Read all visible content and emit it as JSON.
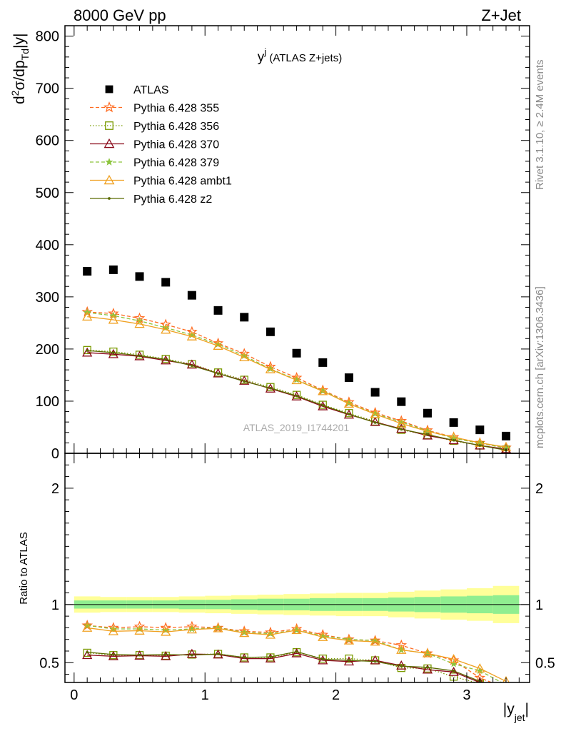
{
  "header": {
    "left": "8000 GeV pp",
    "right": "Z+Jet"
  },
  "side_labels": {
    "rivet": "Rivet 3.1.10, ≥ 2.4M events",
    "mcplots": "mcplots.cern.ch [arXiv:1306.3436]"
  },
  "chart_data": [
    {
      "type": "scatter",
      "panel": "main",
      "title": "y",
      "title_superscript": "j",
      "title_suffix": " (ATLAS Z+jets)",
      "ylabel": "d²σ/dp_Td|y|",
      "ylabel_parts": {
        "d": "d",
        "sup": "2",
        "mid": "σ/dp",
        "sub": "Td",
        "end": "|y|"
      },
      "watermark": "ATLAS_2019_I1744201",
      "xlim": [
        -0.07,
        3.48
      ],
      "ylim": [
        0,
        820
      ],
      "yticks": [
        0,
        100,
        200,
        300,
        400,
        500,
        600,
        700,
        800
      ],
      "x": [
        0.1,
        0.3,
        0.5,
        0.7,
        0.9,
        1.1,
        1.3,
        1.5,
        1.7,
        1.9,
        2.1,
        2.3,
        2.5,
        2.7,
        2.9,
        3.1,
        3.3
      ],
      "legend_position": "top-left",
      "series": [
        {
          "name": "ATLAS",
          "color": "#000000",
          "marker": "square",
          "line": "none",
          "values": [
            349,
            352,
            339,
            328,
            303,
            274,
            261,
            233,
            192,
            174,
            145,
            117,
            99,
            77,
            59,
            45,
            33
          ]
        },
        {
          "name": "Pythia 6.428 355",
          "color": "#ff6a1f",
          "marker": "star",
          "line": "dashed",
          "values": [
            271,
            268,
            259,
            247,
            233,
            211,
            191,
            166,
            145,
            121,
            98,
            78,
            62,
            44,
            31,
            20,
            11
          ]
        },
        {
          "name": "Pythia 6.428 356",
          "color": "#7a9a00",
          "marker": "open-square",
          "line": "dotted",
          "values": [
            198,
            195,
            189,
            181,
            171,
            155,
            141,
            127,
            112,
            93,
            77,
            61,
            45,
            35,
            24,
            15,
            7
          ]
        },
        {
          "name": "Pythia 6.428 370",
          "color": "#8b0a1a",
          "marker": "open-triangle",
          "line": "solid",
          "values": [
            193,
            190,
            186,
            178,
            170,
            153,
            139,
            124,
            109,
            90,
            74,
            60,
            47,
            34,
            25,
            15,
            8
          ]
        },
        {
          "name": "Pythia 6.428 379",
          "color": "#8cc43c",
          "marker": "star-small",
          "line": "dashed",
          "values": [
            270,
            264,
            254,
            241,
            227,
            209,
            187,
            162,
            141,
            120,
            96,
            76,
            60,
            43,
            29,
            19,
            10
          ]
        },
        {
          "name": "Pythia 6.428 ambt1",
          "color": "#f0a020",
          "marker": "open-triangle",
          "line": "solid",
          "values": [
            262,
            256,
            248,
            237,
            224,
            206,
            184,
            161,
            140,
            119,
            95,
            75,
            57,
            42,
            31,
            20,
            12
          ]
        },
        {
          "name": "Pythia 6.428 z2",
          "color": "#5a6a00",
          "marker": "dot",
          "line": "solid",
          "values": [
            197,
            193,
            187,
            180,
            168,
            153,
            138,
            125,
            110,
            92,
            75,
            59,
            46,
            36,
            25,
            15,
            6
          ]
        }
      ]
    },
    {
      "type": "line",
      "panel": "ratio",
      "ylabel": "Ratio to ATLAS",
      "xlabel": "|y",
      "xlabel_sub": "jet",
      "xlabel_end": "|",
      "xlim": [
        -0.07,
        3.48
      ],
      "ylim": [
        0.33,
        2.3
      ],
      "yticks": [
        0.5,
        1,
        2
      ],
      "ytick_labels": [
        "0.5",
        "1",
        "2"
      ],
      "xticks": [
        0,
        1,
        2,
        3
      ],
      "xtick_labels": [
        "0",
        "1",
        "2",
        "3"
      ],
      "band_edges": [
        0.0,
        0.2,
        0.4,
        0.6,
        0.8,
        1.0,
        1.2,
        1.4,
        1.6,
        1.8,
        2.0,
        2.2,
        2.4,
        2.6,
        2.8,
        3.0,
        3.2,
        3.4
      ],
      "band_inner": [
        0.035,
        0.035,
        0.035,
        0.035,
        0.04,
        0.04,
        0.045,
        0.05,
        0.05,
        0.055,
        0.055,
        0.055,
        0.06,
        0.065,
        0.07,
        0.075,
        0.08
      ],
      "band_outer": [
        0.07,
        0.065,
        0.065,
        0.065,
        0.07,
        0.075,
        0.08,
        0.085,
        0.09,
        0.095,
        0.1,
        0.1,
        0.11,
        0.12,
        0.13,
        0.14,
        0.16
      ],
      "band_inner_color": "#90ee90",
      "band_outer_color": "#ffff99",
      "x": [
        0.1,
        0.3,
        0.5,
        0.7,
        0.9,
        1.1,
        1.3,
        1.5,
        1.7,
        1.9,
        2.1,
        2.3,
        2.5,
        2.7,
        2.9,
        3.1,
        3.3
      ],
      "series": [
        {
          "name": "Pythia 6.428 355",
          "color": "#ff6a1f",
          "marker": "star",
          "line": "dashed",
          "values": [
            0.82,
            0.8,
            0.81,
            0.8,
            0.81,
            0.8,
            0.77,
            0.76,
            0.79,
            0.74,
            0.7,
            0.69,
            0.65,
            0.58,
            0.52,
            0.37,
            0.28
          ]
        },
        {
          "name": "Pythia 6.428 356",
          "color": "#7a9a00",
          "marker": "open-square",
          "line": "dotted",
          "values": [
            0.585,
            0.565,
            0.565,
            0.56,
            0.57,
            0.575,
            0.545,
            0.545,
            0.59,
            0.535,
            0.535,
            0.52,
            0.455,
            0.45,
            0.38,
            0.32,
            0.24
          ]
        },
        {
          "name": "Pythia 6.428 370",
          "color": "#8b0a1a",
          "marker": "open-triangle",
          "line": "solid",
          "values": [
            0.565,
            0.555,
            0.56,
            0.555,
            0.575,
            0.57,
            0.535,
            0.535,
            0.58,
            0.52,
            0.51,
            0.52,
            0.475,
            0.44,
            0.42,
            0.33,
            0.24
          ]
        },
        {
          "name": "Pythia 6.428 379",
          "color": "#8cc43c",
          "marker": "star-small",
          "line": "dashed",
          "values": [
            0.82,
            0.79,
            0.79,
            0.78,
            0.79,
            0.8,
            0.76,
            0.75,
            0.78,
            0.73,
            0.7,
            0.69,
            0.61,
            0.58,
            0.49,
            0.43,
            0.31
          ]
        },
        {
          "name": "Pythia 6.428 ambt1",
          "color": "#f0a020",
          "marker": "open-triangle",
          "line": "solid",
          "values": [
            0.8,
            0.77,
            0.775,
            0.765,
            0.785,
            0.795,
            0.755,
            0.74,
            0.78,
            0.72,
            0.69,
            0.68,
            0.61,
            0.58,
            0.53,
            0.45,
            0.34
          ]
        },
        {
          "name": "Pythia 6.428 z2",
          "color": "#5a6a00",
          "marker": "dot",
          "line": "solid",
          "values": [
            0.59,
            0.57,
            0.565,
            0.57,
            0.565,
            0.575,
            0.545,
            0.55,
            0.595,
            0.53,
            0.52,
            0.51,
            0.47,
            0.46,
            0.43,
            0.34,
            0.24
          ]
        }
      ]
    }
  ]
}
